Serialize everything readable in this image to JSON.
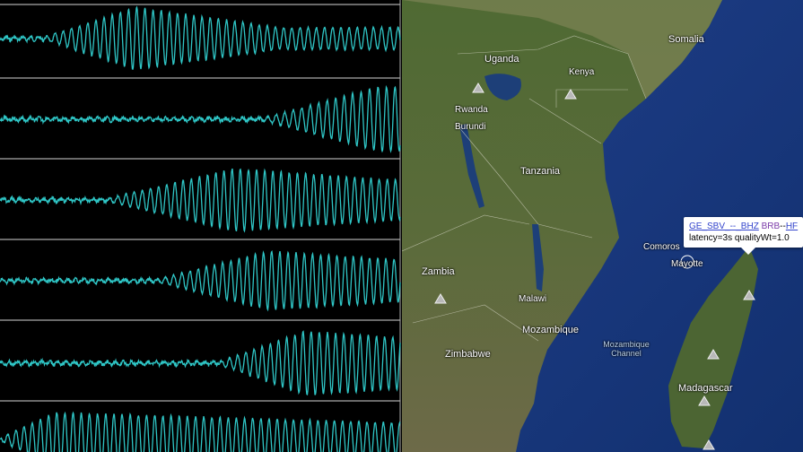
{
  "waveform_panel": {
    "trace_count": 6,
    "trace_color": "#2fc6c6",
    "background": "#000000"
  },
  "map": {
    "labels": [
      {
        "name": "somalia",
        "text": "Somalia"
      },
      {
        "name": "uganda",
        "text": "Uganda"
      },
      {
        "name": "kenya",
        "text": "Kenya"
      },
      {
        "name": "rwanda",
        "text": "Rwanda"
      },
      {
        "name": "burundi",
        "text": "Burundi"
      },
      {
        "name": "tanzania",
        "text": "Tanzania"
      },
      {
        "name": "comoros",
        "text": "Comoros"
      },
      {
        "name": "mayotte",
        "text": "Mayotte"
      },
      {
        "name": "zambia",
        "text": "Zambia"
      },
      {
        "name": "malawi",
        "text": "Malawi"
      },
      {
        "name": "mozambique",
        "text": "Mozambique"
      },
      {
        "name": "mozambique-channel",
        "text": "Mozambique Channel"
      },
      {
        "name": "zimbabwe",
        "text": "Zimbabwe"
      },
      {
        "name": "madagascar",
        "text": "Madagascar"
      }
    ],
    "station_icon": "triangle-icon",
    "popup": {
      "station": "GE_SBV_--_BHZ",
      "network": "BRB",
      "type": "HF",
      "separator": "--",
      "info": "latency=3s  qualityWt=1.0"
    }
  }
}
